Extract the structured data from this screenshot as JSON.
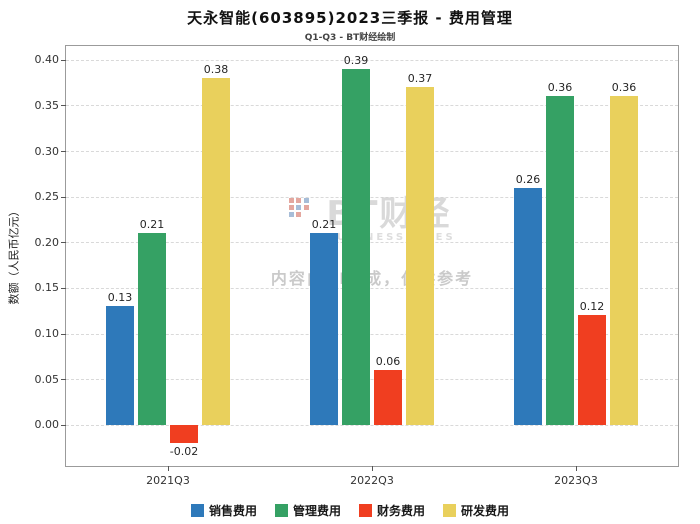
{
  "header": {
    "title": "天永智能(603895)2023三季报 - 费用管理",
    "subtitle": "Q1-Q3 - BT财经绘制"
  },
  "watermark": {
    "logo_text": "BT财经",
    "logo_subtext": "BUSINESSTIMES",
    "disclaimer": "内容由AI生成，仅供参考"
  },
  "chart_data": {
    "type": "bar",
    "title": "天永智能(603895)2023三季报 - 费用管理",
    "subtitle": "Q1-Q3 - BT财经绘制",
    "xlabel": "",
    "ylabel": "数额（人民币亿元）",
    "categories": [
      "2021Q3",
      "2022Q3",
      "2023Q3"
    ],
    "series": [
      {
        "name": "销售费用",
        "color": "#2e79ba",
        "values": [
          0.13,
          0.21,
          0.26
        ]
      },
      {
        "name": "管理费用",
        "color": "#35a164",
        "values": [
          0.21,
          0.39,
          0.36
        ]
      },
      {
        "name": "财务费用",
        "color": "#f03e20",
        "values": [
          -0.02,
          0.06,
          0.12
        ]
      },
      {
        "name": "研发费用",
        "color": "#e9d05c",
        "values": [
          0.38,
          0.37,
          0.36
        ]
      }
    ],
    "yticks": [
      0.0,
      0.05,
      0.1,
      0.15,
      0.2,
      0.25,
      0.3,
      0.35,
      0.4
    ],
    "ylim": [
      -0.045,
      0.415
    ],
    "grid": "dashed-horizontal",
    "legend_position": "bottom"
  }
}
